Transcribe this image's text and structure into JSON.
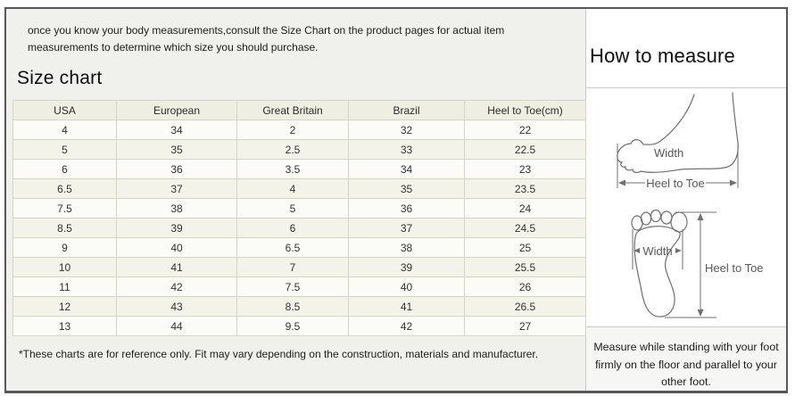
{
  "intro": {
    "text": "once you know your body measurements,consult the Size Chart on the product pages for actual item measurements to determine which size you should purchase."
  },
  "size_chart": {
    "title": "Size chart",
    "columns": [
      "USA",
      "European",
      "Great Britain",
      "Brazil",
      "Heel to Toe(cm)"
    ],
    "rows": [
      [
        "4",
        "34",
        "2",
        "32",
        "22"
      ],
      [
        "5",
        "35",
        "2.5",
        "33",
        "22.5"
      ],
      [
        "6",
        "36",
        "3.5",
        "34",
        "23"
      ],
      [
        "6.5",
        "37",
        "4",
        "35",
        "23.5"
      ],
      [
        "7.5",
        "38",
        "5",
        "36",
        "24"
      ],
      [
        "8.5",
        "39",
        "6",
        "37",
        "24.5"
      ],
      [
        "9",
        "40",
        "6.5",
        "38",
        "25"
      ],
      [
        "10",
        "41",
        "7",
        "39",
        "25.5"
      ],
      [
        "11",
        "42",
        "7.5",
        "40",
        "26"
      ],
      [
        "12",
        "43",
        "8.5",
        "41",
        "26.5"
      ],
      [
        "13",
        "44",
        "9.5",
        "42",
        "27"
      ]
    ],
    "footnote": "*These charts are for reference only. Fit may vary depending on the construction, materials and manufacturer."
  },
  "how_to_measure": {
    "title": "How to measure",
    "side_view": {
      "width_label": "Width",
      "length_label": "Heel to Toe"
    },
    "bottom_view": {
      "width_label": "Width",
      "length_label": "Heel to Toe"
    },
    "note": "Measure while standing with your foot firmly on the floor and parallel to your other foot."
  },
  "colors": {
    "panel_background": "#f0f0ec",
    "table_header_background": "#eeeee3",
    "table_row_alt_background": "#f3f3ea",
    "table_border": "#d5d5c0",
    "frame_border": "#58585b",
    "diagram_stroke": "#707070"
  }
}
